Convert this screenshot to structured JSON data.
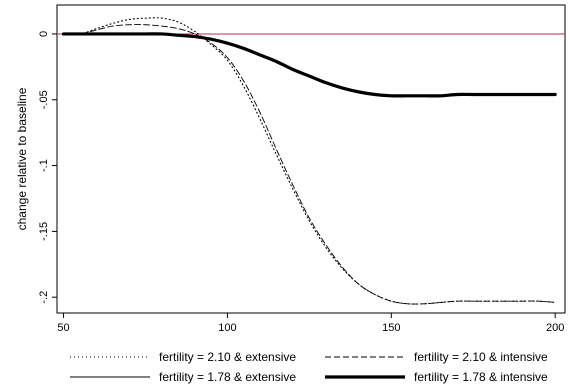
{
  "chart_data": {
    "type": "line",
    "title": "",
    "xlabel": "",
    "ylabel": "change relative to baseline",
    "xlim": [
      48,
      203
    ],
    "ylim": [
      -0.212,
      0.022
    ],
    "x_ticks": [
      50,
      100,
      150,
      200
    ],
    "x_tick_labels": [
      "50",
      "100",
      "150",
      "200"
    ],
    "y_ticks": [
      0,
      -0.05,
      -0.1,
      -0.15,
      -0.2
    ],
    "y_tick_labels": [
      "0",
      "-.05",
      "-.1",
      "-.15",
      "-.2"
    ],
    "grid": false,
    "baseline": {
      "y": 0,
      "color": "#b03050"
    },
    "legend": {
      "position": "bottom",
      "columns": 2,
      "order": [
        0,
        2,
        1,
        3
      ]
    },
    "series": [
      {
        "name": "fertility = 2.10 & extensive",
        "style": "dotted",
        "color": "#000000",
        "x": [
          50,
          55,
          60,
          65,
          70,
          75,
          80,
          85,
          90,
          95,
          100,
          105,
          110,
          115,
          120,
          125,
          130,
          135,
          140,
          145,
          150,
          155,
          160,
          165,
          170,
          175,
          180,
          185,
          190,
          195,
          200
        ],
        "y": [
          0.0,
          0.0,
          0.004,
          0.008,
          0.011,
          0.012,
          0.012,
          0.009,
          0.002,
          -0.008,
          -0.02,
          -0.04,
          -0.065,
          -0.092,
          -0.118,
          -0.142,
          -0.162,
          -0.178,
          -0.19,
          -0.198,
          -0.203,
          -0.205,
          -0.205,
          -0.204,
          -0.203,
          -0.203,
          -0.203,
          -0.203,
          -0.203,
          -0.203,
          -0.204
        ]
      },
      {
        "name": "fertility = 2.10 & intensive",
        "style": "dashed",
        "color": "#000000",
        "x": [
          50,
          55,
          60,
          65,
          70,
          75,
          80,
          85,
          90,
          95,
          100,
          105,
          110,
          115,
          120,
          125,
          130,
          135,
          140,
          145,
          150,
          155,
          160,
          165,
          170,
          175,
          180,
          185,
          190,
          195,
          200
        ],
        "y": [
          0.0,
          0.0,
          0.003,
          0.006,
          0.007,
          0.007,
          0.006,
          0.004,
          0.0,
          -0.007,
          -0.018,
          -0.036,
          -0.06,
          -0.088,
          -0.115,
          -0.14,
          -0.16,
          -0.177,
          -0.19,
          -0.198,
          -0.203,
          -0.205,
          -0.205,
          -0.204,
          -0.203,
          -0.203,
          -0.203,
          -0.203,
          -0.203,
          -0.203,
          -0.204
        ]
      },
      {
        "name": "fertility = 1.78 & extensive",
        "style": "solid",
        "color": "#000000",
        "x": [
          50,
          55,
          60,
          65,
          70,
          75,
          80,
          85,
          90,
          95,
          100,
          105,
          110,
          115,
          120,
          125,
          130,
          135,
          140,
          145,
          150,
          155,
          160,
          165,
          170,
          175,
          180,
          185,
          190,
          195,
          200
        ],
        "y": [
          0.0,
          0.0,
          0.0,
          0.0,
          0.0,
          0.0,
          0.0,
          -0.001,
          -0.002,
          -0.004,
          -0.007,
          -0.011,
          -0.016,
          -0.021,
          -0.027,
          -0.032,
          -0.037,
          -0.041,
          -0.044,
          -0.046,
          -0.047,
          -0.047,
          -0.047,
          -0.047,
          -0.046,
          -0.046,
          -0.046,
          -0.046,
          -0.046,
          -0.046,
          -0.046
        ]
      },
      {
        "name": "fertility = 1.78 & intensive",
        "style": "thick",
        "color": "#000000",
        "x": [
          50,
          55,
          60,
          65,
          70,
          75,
          80,
          85,
          90,
          95,
          100,
          105,
          110,
          115,
          120,
          125,
          130,
          135,
          140,
          145,
          150,
          155,
          160,
          165,
          170,
          175,
          180,
          185,
          190,
          195,
          200
        ],
        "y": [
          0.0,
          0.0,
          0.0,
          0.0,
          0.0,
          0.0,
          0.0,
          -0.001,
          -0.002,
          -0.004,
          -0.007,
          -0.011,
          -0.016,
          -0.021,
          -0.027,
          -0.032,
          -0.037,
          -0.041,
          -0.044,
          -0.046,
          -0.047,
          -0.047,
          -0.047,
          -0.047,
          -0.046,
          -0.046,
          -0.046,
          -0.046,
          -0.046,
          -0.046,
          -0.046
        ]
      }
    ]
  }
}
